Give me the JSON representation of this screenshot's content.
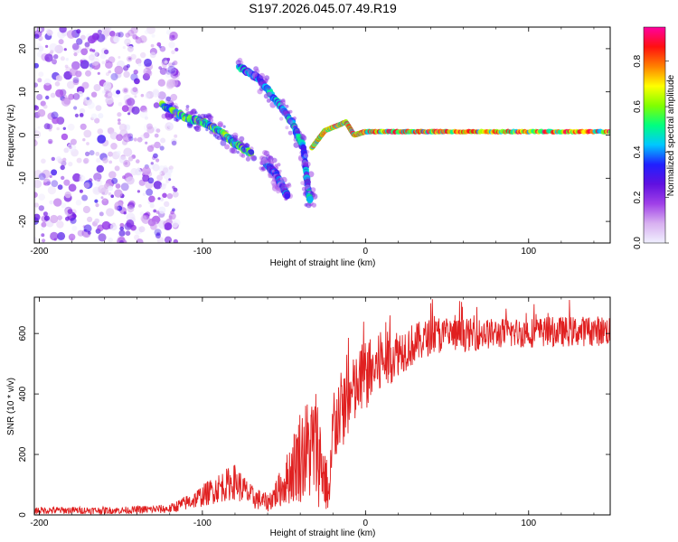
{
  "title": "S197.2026.045.07.49.R19",
  "chart_data": [
    {
      "type": "heatmap",
      "xlabel": "Height of straight line (km)",
      "ylabel": "Frequency (Hz)",
      "xlim": [
        -203,
        150
      ],
      "ylim": [
        -25,
        25
      ],
      "xticks": [
        -200,
        -100,
        0,
        100
      ],
      "yticks": [
        -20,
        -10,
        0,
        10,
        20
      ],
      "colorbar": {
        "label": "Normalized spectral amplitude",
        "range": [
          0.0,
          0.95
        ],
        "ticks": [
          "0.0",
          "0.2",
          "0.4",
          "0.6",
          "0.8"
        ],
        "colormap": [
          "#f0f0ff",
          "#d8b0f0",
          "#a040e8",
          "#6010e0",
          "#2020ff",
          "#00c8ff",
          "#00ff80",
          "#80ff00",
          "#ffff00",
          "#ff8000",
          "#ff1010",
          "#ff00a0"
        ]
      },
      "features": [
        {
          "name": "noise cloud",
          "x": [
            -203,
            -115
          ],
          "y": [
            -25,
            25
          ],
          "amplitude": 0.15
        },
        {
          "name": "descending band A",
          "points": [
            [
              -125,
              7
            ],
            [
              -110,
              4
            ],
            [
              -100,
              3
            ],
            [
              -90,
              1
            ],
            [
              -80,
              -2
            ],
            [
              -70,
              -4
            ]
          ],
          "amplitude": 0.5
        },
        {
          "name": "descending band B",
          "points": [
            [
              -78,
              16
            ],
            [
              -65,
              13
            ],
            [
              -55,
              8
            ],
            [
              -45,
              3
            ],
            [
              -38,
              -3
            ],
            [
              -35,
              -13
            ],
            [
              -34,
              -15
            ]
          ],
          "amplitude": 0.4
        },
        {
          "name": "lower branch",
          "points": [
            [
              -62,
              -6
            ],
            [
              -55,
              -9
            ],
            [
              -48,
              -14
            ]
          ],
          "amplitude": 0.35
        },
        {
          "name": "carrier",
          "points": [
            [
              -33,
              -3
            ],
            [
              -25,
              1
            ],
            [
              -12,
              3
            ],
            [
              -7,
              0
            ],
            [
              0,
              0.8
            ],
            [
              50,
              0.8
            ],
            [
              150,
              0.8
            ]
          ],
          "amplitude": 0.7
        }
      ]
    },
    {
      "type": "line",
      "xlabel": "Height of straight line (km)",
      "ylabel": "SNR (10 * v/v)",
      "xlim": [
        -203,
        150
      ],
      "ylim": [
        0,
        720
      ],
      "xticks": [
        -200,
        -100,
        0,
        100
      ],
      "yticks": [
        0,
        200,
        400,
        600
      ],
      "series": [
        {
          "name": "SNR",
          "color": "#e02020",
          "envelope": [
            {
              "x": -203,
              "base": 15,
              "spread": 12
            },
            {
              "x": -150,
              "base": 15,
              "spread": 12
            },
            {
              "x": -120,
              "base": 20,
              "spread": 15
            },
            {
              "x": -105,
              "base": 50,
              "spread": 30
            },
            {
              "x": -90,
              "base": 90,
              "spread": 50
            },
            {
              "x": -80,
              "base": 110,
              "spread": 60
            },
            {
              "x": -70,
              "base": 60,
              "spread": 40
            },
            {
              "x": -60,
              "base": 40,
              "spread": 30
            },
            {
              "x": -50,
              "base": 100,
              "spread": 70
            },
            {
              "x": -40,
              "base": 200,
              "spread": 160
            },
            {
              "x": -30,
              "base": 230,
              "spread": 200
            },
            {
              "x": -22,
              "base": 60,
              "spread": 60
            },
            {
              "x": -20,
              "base": 300,
              "spread": 150
            },
            {
              "x": -10,
              "base": 380,
              "spread": 120
            },
            {
              "x": 0,
              "base": 460,
              "spread": 120
            },
            {
              "x": 10,
              "base": 500,
              "spread": 100
            },
            {
              "x": 20,
              "base": 540,
              "spread": 80
            },
            {
              "x": 40,
              "base": 590,
              "spread": 60
            },
            {
              "x": 80,
              "base": 600,
              "spread": 50
            },
            {
              "x": 150,
              "base": 610,
              "spread": 50
            }
          ]
        }
      ]
    }
  ]
}
